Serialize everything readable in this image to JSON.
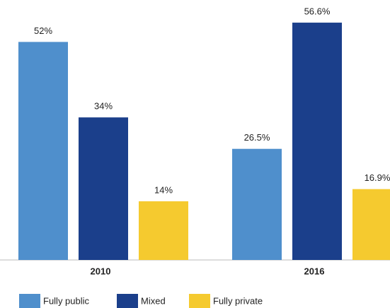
{
  "chart_data": {
    "type": "bar",
    "categories": [
      "2010",
      "2016"
    ],
    "series": [
      {
        "name": "Fully public",
        "color": "#4f8fcc",
        "values": [
          52,
          26.5
        ],
        "value_labels": [
          "52%",
          "26.5%"
        ]
      },
      {
        "name": "Mixed",
        "color": "#1b3f8b",
        "values": [
          34,
          56.6
        ],
        "value_labels": [
          "34%",
          "56.6%"
        ]
      },
      {
        "name": "Fully private",
        "color": "#f5ca2f",
        "values": [
          14,
          16.9
        ],
        "value_labels": [
          "14%",
          "16.9%"
        ]
      }
    ],
    "ylim": [
      0,
      62
    ]
  }
}
